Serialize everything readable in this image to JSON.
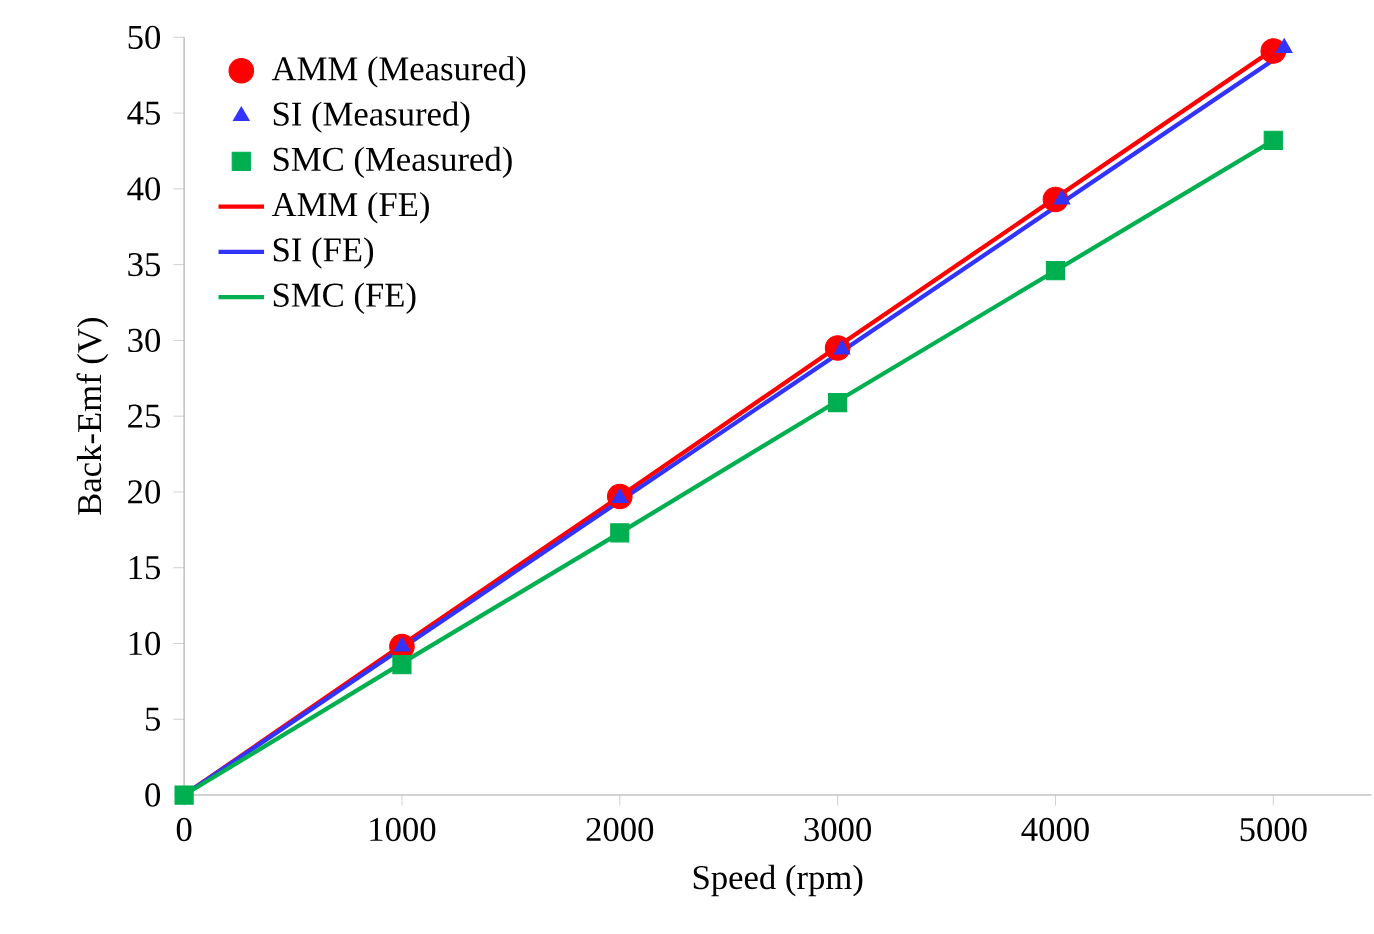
{
  "chart_data": {
    "type": "line",
    "xlabel": "Speed (rpm)",
    "ylabel": "Back-Emf (V)",
    "xlim": [
      0,
      5450
    ],
    "ylim": [
      0,
      50
    ],
    "xticks": [
      0,
      1000,
      2000,
      3000,
      4000,
      5000
    ],
    "yticks": [
      0,
      5,
      10,
      15,
      20,
      25,
      30,
      35,
      40,
      45,
      50
    ],
    "grid": false,
    "legend": "top left",
    "series": [
      {
        "name": "AMM (Measured)",
        "type": "scatter",
        "marker": "circle",
        "color": "#ff0000",
        "x": [
          1000,
          2000,
          3000,
          4000,
          5000
        ],
        "values": [
          9.8,
          19.7,
          29.5,
          39.3,
          49.1
        ]
      },
      {
        "name": "SI (Measured)",
        "type": "scatter",
        "marker": "triangle",
        "color": "#3333ff",
        "x": [
          1000,
          2000,
          3020,
          4030,
          5050
        ],
        "values": [
          9.8,
          19.6,
          29.4,
          39.3,
          49.3
        ]
      },
      {
        "name": "SMC (Measured)",
        "type": "scatter",
        "marker": "square",
        "color": "#00b050",
        "x": [
          0,
          1000,
          2000,
          3000,
          4000,
          5000
        ],
        "values": [
          0,
          8.6,
          17.3,
          25.9,
          34.6,
          43.2
        ]
      },
      {
        "name": "AMM (FE)",
        "marker": "none",
        "color": "#ff0000",
        "x": [
          0,
          1000,
          2000,
          3000,
          4000,
          5000
        ],
        "values": [
          0,
          9.9,
          19.7,
          29.6,
          39.4,
          49.2
        ]
      },
      {
        "name": "SI (FE)",
        "marker": "none",
        "color": "#3333ff",
        "x": [
          0,
          1000,
          2000,
          3000,
          4000,
          5000
        ],
        "values": [
          0,
          9.7,
          19.4,
          29.1,
          38.8,
          48.5
        ]
      },
      {
        "name": "SMC (FE)",
        "marker": "none",
        "color": "#00b050",
        "x": [
          0,
          1000,
          2000,
          3000,
          4000,
          5000
        ],
        "values": [
          0,
          8.7,
          17.3,
          26.0,
          34.6,
          43.2
        ]
      }
    ]
  }
}
